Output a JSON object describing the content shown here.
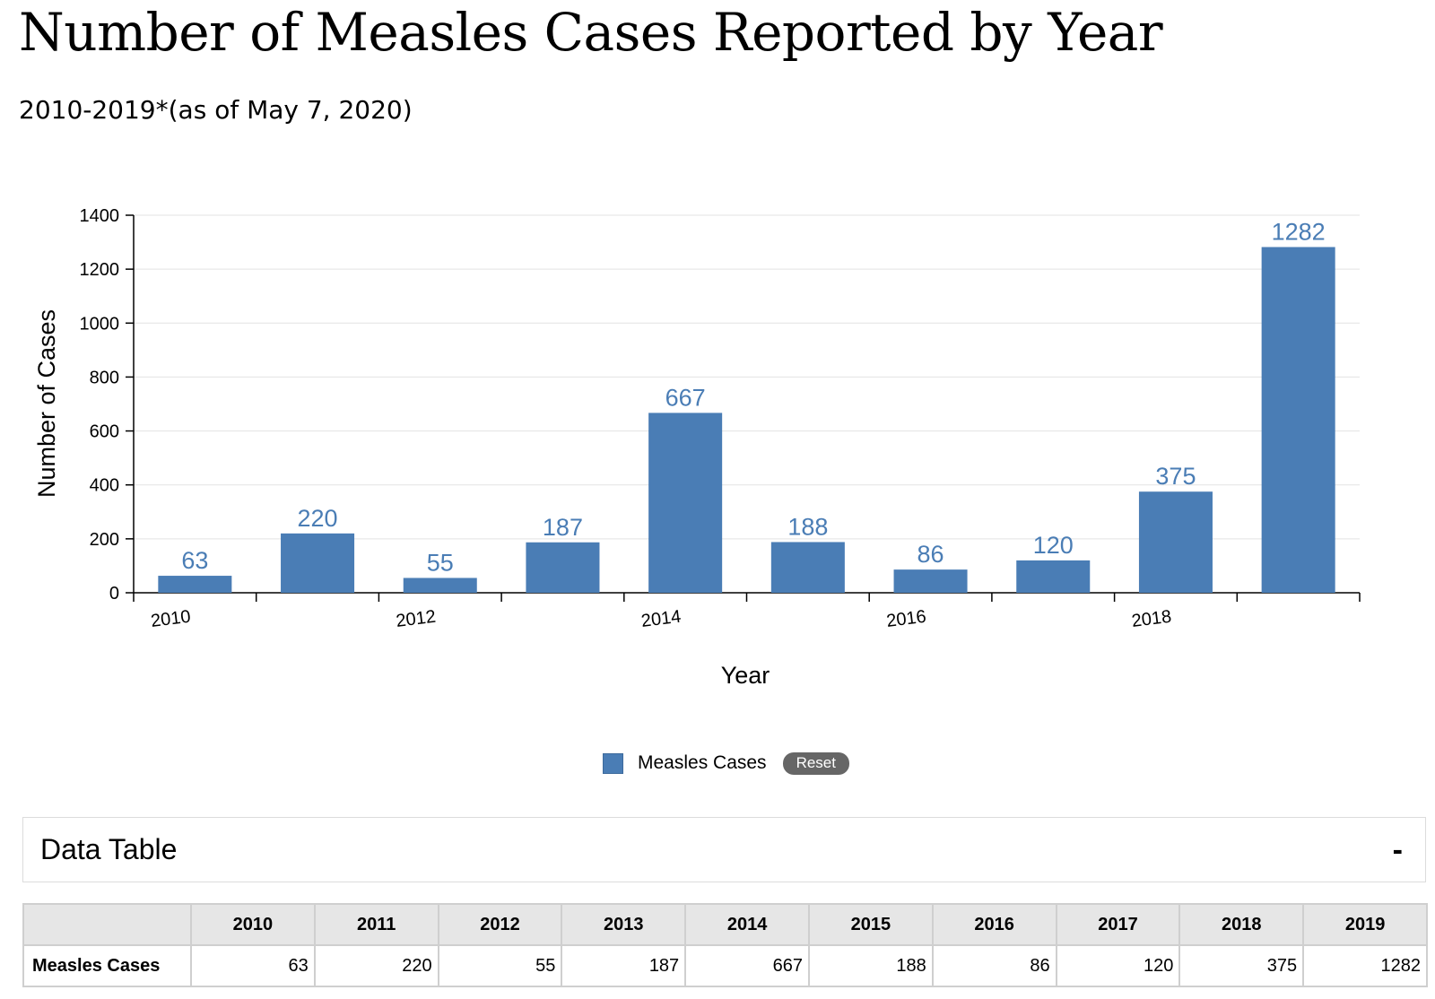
{
  "header": {
    "title": "Number of Measles Cases Reported by Year",
    "subtitle": "2010-2019*(as of May 7, 2020)"
  },
  "chart_data": {
    "type": "bar",
    "categories": [
      "2010",
      "2011",
      "2012",
      "2013",
      "2014",
      "2015",
      "2016",
      "2017",
      "2018",
      "2019"
    ],
    "series": [
      {
        "name": "Measles Cases",
        "values": [
          63,
          220,
          55,
          187,
          667,
          188,
          86,
          120,
          375,
          1282
        ]
      }
    ],
    "xlabel": "Year",
    "ylabel": "Number of Cases",
    "ylim": [
      0,
      1400
    ],
    "yticks": [
      0,
      200,
      400,
      600,
      800,
      1000,
      1200,
      1400
    ],
    "xtick_labels": [
      "2010",
      "2012",
      "2014",
      "2016",
      "2018"
    ],
    "grid": true,
    "legend": "bottom-center",
    "data_labels": true,
    "bar_color": "#4a7db5"
  },
  "legend": {
    "label": "Measles Cases",
    "reset_label": "Reset"
  },
  "data_table": {
    "title": "Data Table",
    "toggle": "-",
    "row_label": "Measles Cases",
    "columns": [
      "2010",
      "2011",
      "2012",
      "2013",
      "2014",
      "2015",
      "2016",
      "2017",
      "2018",
      "2019"
    ],
    "values": [
      "63",
      "220",
      "55",
      "187",
      "667",
      "188",
      "86",
      "120",
      "375",
      "1282"
    ]
  }
}
